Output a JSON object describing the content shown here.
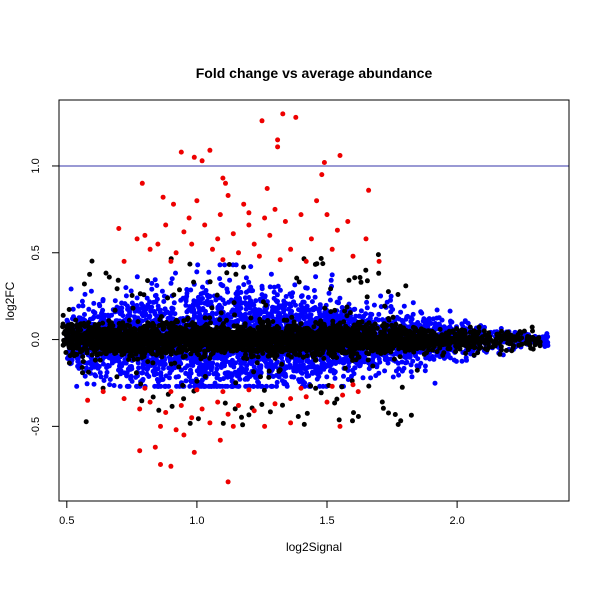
{
  "chart_data": {
    "type": "scatter",
    "title": "Fold change vs average abundance",
    "xlabel": "log2Signal",
    "ylabel": "log2FC",
    "xlim": [
      0.47,
      2.43
    ],
    "ylim": [
      -0.93,
      1.38
    ],
    "x_ticks": [
      0.5,
      1.0,
      1.5,
      2.0
    ],
    "x_tick_labels": [
      "0.5",
      "1.0",
      "1.5",
      "2.0"
    ],
    "y_ticks": [
      -0.5,
      0.0,
      0.5,
      1.0
    ],
    "y_tick_labels": [
      "-0.5",
      "0.0",
      "0.5",
      "1.0"
    ],
    "reference_line": {
      "orientation": "horizontal",
      "y": 1.0,
      "color": "#3333aa"
    },
    "grid": false,
    "legend": "none",
    "colors": {
      "red": "#ee0000",
      "blue": "#0000ff",
      "black": "#000000"
    },
    "series": [
      {
        "color": "red",
        "points": [
          [
            1.25,
            1.26
          ],
          [
            1.33,
            1.3
          ],
          [
            1.38,
            1.28
          ],
          [
            1.31,
            1.15
          ],
          [
            1.31,
            1.11
          ],
          [
            1.55,
            1.06
          ],
          [
            0.94,
            1.08
          ],
          [
            1.05,
            1.09
          ],
          [
            0.99,
            1.05
          ],
          [
            1.02,
            1.03
          ],
          [
            1.1,
            0.93
          ],
          [
            1.11,
            0.9
          ],
          [
            1.49,
            1.02
          ],
          [
            1.27,
            0.87
          ],
          [
            1.66,
            0.86
          ],
          [
            1.48,
            0.95
          ],
          [
            0.79,
            0.9
          ],
          [
            0.87,
            0.82
          ],
          [
            0.91,
            0.78
          ],
          [
            1.0,
            0.8
          ],
          [
            1.12,
            0.83
          ],
          [
            1.18,
            0.78
          ],
          [
            1.2,
            0.73
          ],
          [
            1.26,
            0.7
          ],
          [
            1.3,
            0.75
          ],
          [
            1.34,
            0.68
          ],
          [
            1.4,
            0.72
          ],
          [
            1.46,
            0.8
          ],
          [
            1.5,
            0.72
          ],
          [
            1.54,
            0.63
          ],
          [
            1.58,
            0.68
          ],
          [
            1.65,
            0.58
          ],
          [
            0.7,
            0.64
          ],
          [
            0.8,
            0.6
          ],
          [
            0.85,
            0.55
          ],
          [
            0.95,
            0.62
          ],
          [
            1.03,
            0.66
          ],
          [
            1.08,
            0.58
          ],
          [
            1.14,
            0.61
          ],
          [
            1.22,
            0.55
          ],
          [
            1.28,
            0.6
          ],
          [
            1.36,
            0.52
          ],
          [
            1.44,
            0.58
          ],
          [
            1.52,
            0.52
          ],
          [
            1.6,
            0.48
          ],
          [
            1.7,
            0.45
          ],
          [
            0.82,
            0.52
          ],
          [
            0.92,
            0.5
          ],
          [
            0.98,
            0.55
          ],
          [
            1.06,
            0.52
          ],
          [
            1.16,
            0.5
          ],
          [
            1.24,
            0.48
          ],
          [
            0.72,
            0.45
          ],
          [
            0.9,
            0.45
          ],
          [
            1.1,
            0.46
          ],
          [
            1.32,
            0.46
          ],
          [
            1.42,
            0.45
          ],
          [
            0.77,
            0.58
          ],
          [
            0.88,
            0.66
          ],
          [
            0.97,
            0.7
          ],
          [
            1.09,
            0.72
          ],
          [
            1.2,
            0.66
          ],
          [
            0.58,
            -0.35
          ],
          [
            0.64,
            -0.3
          ],
          [
            0.72,
            -0.34
          ],
          [
            0.78,
            -0.4
          ],
          [
            0.82,
            -0.36
          ],
          [
            0.88,
            -0.42
          ],
          [
            0.94,
            -0.38
          ],
          [
            0.98,
            -0.45
          ],
          [
            1.02,
            -0.4
          ],
          [
            1.08,
            -0.36
          ],
          [
            1.12,
            -0.43
          ],
          [
            1.16,
            -0.38
          ],
          [
            1.22,
            -0.41
          ],
          [
            1.3,
            -0.37
          ],
          [
            1.36,
            -0.34
          ],
          [
            1.42,
            -0.33
          ],
          [
            1.5,
            -0.36
          ],
          [
            1.56,
            -0.32
          ],
          [
            1.62,
            -0.3
          ],
          [
            0.8,
            -0.28
          ],
          [
            0.9,
            -0.3
          ],
          [
            1.0,
            -0.29
          ],
          [
            1.1,
            -0.3
          ],
          [
            1.2,
            -0.29
          ],
          [
            1.4,
            -0.28
          ],
          [
            1.52,
            -0.27
          ],
          [
            1.6,
            -0.26
          ],
          [
            0.86,
            -0.5
          ],
          [
            0.92,
            -0.52
          ],
          [
            1.05,
            -0.48
          ],
          [
            1.14,
            -0.5
          ],
          [
            1.26,
            -0.5
          ],
          [
            1.36,
            -0.48
          ],
          [
            1.55,
            -0.5
          ],
          [
            0.78,
            -0.64
          ],
          [
            0.84,
            -0.62
          ],
          [
            0.86,
            -0.72
          ],
          [
            0.9,
            -0.73
          ],
          [
            0.99,
            -0.65
          ],
          [
            1.12,
            -0.82
          ],
          [
            1.09,
            -0.58
          ],
          [
            0.95,
            -0.55
          ]
        ]
      },
      {
        "color": "blue",
        "note": "dense cloud of several thousand points from log2Signal 0.55 to 2.35, log2FC roughly -0.26 to 0.43, narrowing toward high signal",
        "points": []
      },
      {
        "color": "black",
        "note": "dense core band of points around log2FC 0, spread about -0.1 to 0.1 across log2Signal 0.48 to 2.32",
        "points": []
      }
    ]
  }
}
